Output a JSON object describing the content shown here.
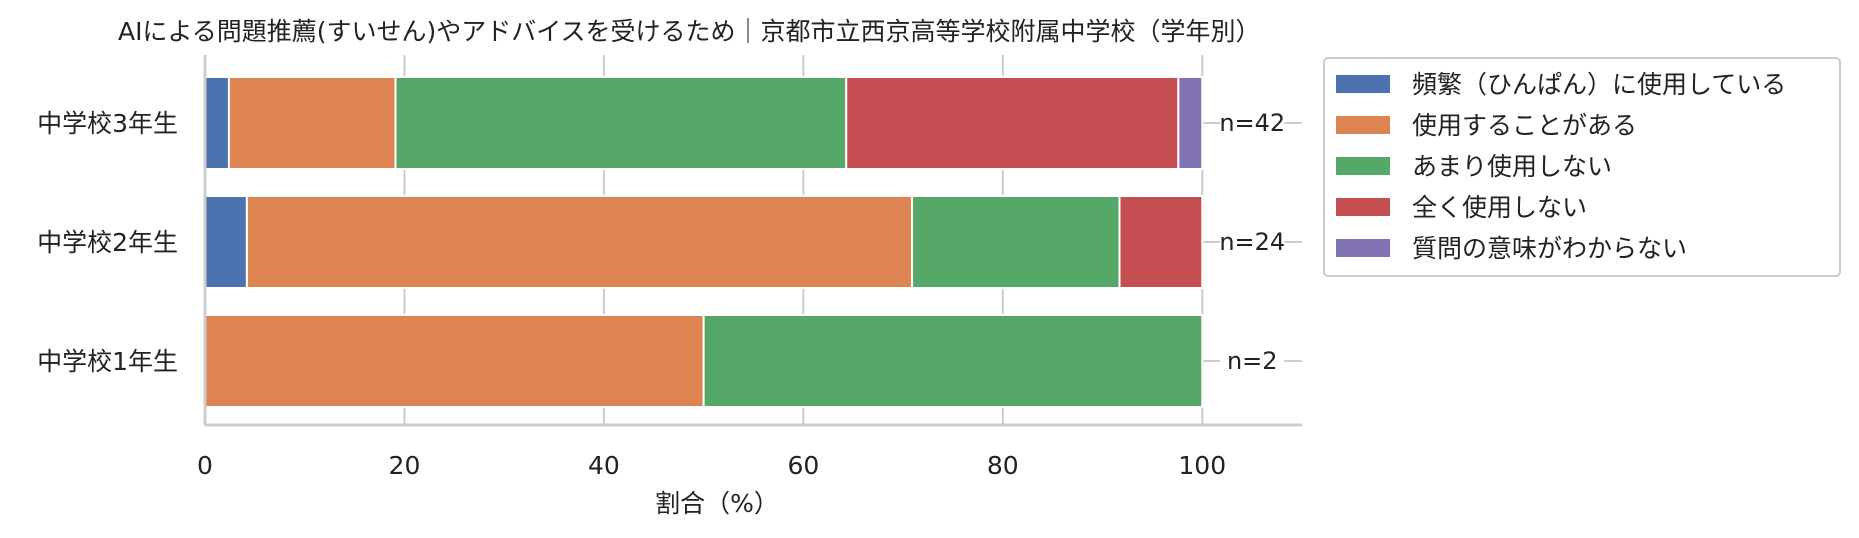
{
  "chart_data": {
    "type": "bar",
    "orientation": "horizontal",
    "stacked": true,
    "title": "AIによる問題推薦(すいせん)やアドバイスを受けるため｜京都市立西京高等学校附属中学校（学年別）",
    "xlabel": "割合（%）",
    "ylabel": "",
    "xlim": [
      0,
      110
    ],
    "xticks": [
      0,
      20,
      40,
      60,
      80,
      100
    ],
    "grid": "vertical",
    "legend_position": "right-top",
    "categories": [
      "中学校3年生",
      "中学校2年生",
      "中学校1年生"
    ],
    "n_labels": [
      "n=42",
      "n=24",
      "n=2"
    ],
    "series": [
      {
        "name": "頻繁（ひんぱん）に使用している",
        "color": "#4c72b0",
        "values": [
          2.4,
          4.2,
          0
        ]
      },
      {
        "name": "使用することがある",
        "color": "#dd8452",
        "values": [
          16.7,
          66.7,
          50.0
        ]
      },
      {
        "name": "あまり使用しない",
        "color": "#55a868",
        "values": [
          45.2,
          20.8,
          50.0
        ]
      },
      {
        "name": "全く使用しない",
        "color": "#c44e52",
        "values": [
          33.3,
          8.3,
          0
        ]
      },
      {
        "name": "質問の意味がわからない",
        "color": "#8172b3",
        "values": [
          2.4,
          0,
          0
        ]
      }
    ]
  }
}
